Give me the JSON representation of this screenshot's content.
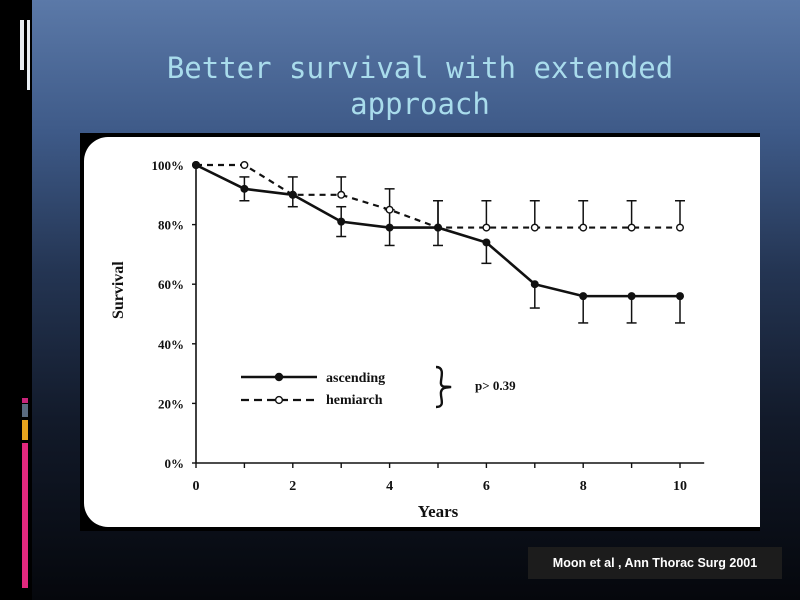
{
  "slide": {
    "title": "Better survival with extended approach",
    "citation": "Moon et al , Ann Thorac  Surg  2001"
  },
  "chart_data": {
    "type": "line",
    "title": "",
    "xlabel": "Years",
    "ylabel": "Survival",
    "xlim": [
      0,
      10.5
    ],
    "ylim": [
      0,
      100
    ],
    "x_ticks": [
      0,
      2,
      4,
      6,
      8,
      10
    ],
    "y_ticks": [
      "0%",
      "20%",
      "40%",
      "60%",
      "80%",
      "100%"
    ],
    "y_tick_values": [
      0,
      20,
      40,
      60,
      80,
      100
    ],
    "grid": false,
    "legend_position": "lower-left",
    "annotation": "p> 0.39",
    "series": [
      {
        "name": "ascending",
        "marker": "filled-circle",
        "linestyle": "solid",
        "x": [
          0,
          1,
          2,
          3,
          4,
          5,
          6,
          7,
          8,
          9,
          10
        ],
        "y": [
          100,
          92,
          90,
          81,
          79,
          79,
          74,
          60,
          56,
          56,
          56
        ],
        "error_lower": [
          100,
          88,
          86,
          76,
          73,
          73,
          67,
          52,
          47,
          47,
          47
        ],
        "error_upper": [
          100,
          96,
          96,
          86,
          85,
          88,
          88,
          88,
          88,
          88,
          88
        ]
      },
      {
        "name": "hemiarch",
        "marker": "open-circle",
        "linestyle": "dashed",
        "x": [
          0,
          1,
          2,
          3,
          4,
          5,
          6,
          7,
          8,
          9,
          10
        ],
        "y": [
          100,
          100,
          90,
          90,
          85,
          79,
          79,
          79,
          79,
          79,
          79
        ],
        "error_upper": [
          100,
          100,
          90,
          96,
          92,
          88,
          88,
          88,
          88,
          88,
          88
        ]
      }
    ]
  }
}
